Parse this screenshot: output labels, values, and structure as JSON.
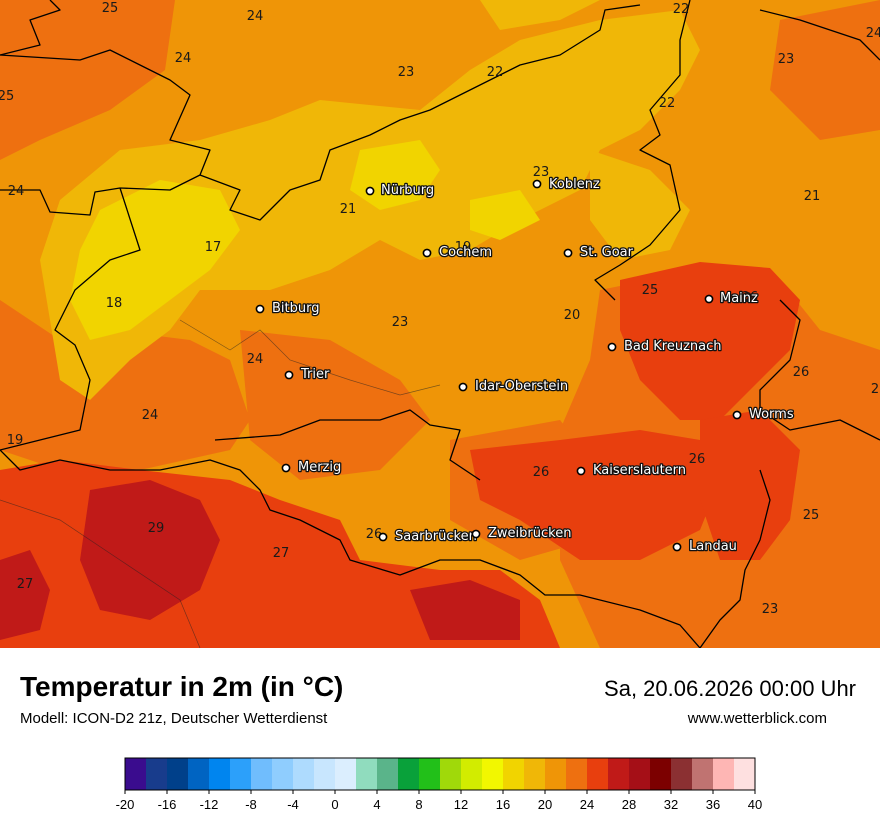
{
  "title": "Temperatur in 2m (in °C)",
  "subtitle": "Modell: ICON-D2 21z, Deutscher Wetterdienst",
  "datetime": "Sa, 20.06.2026 00:00 Uhr",
  "website": "www.wetterblick.com",
  "cities": [
    {
      "name": "Nürburg"
    },
    {
      "name": "Koblenz"
    },
    {
      "name": "Cochem"
    },
    {
      "name": "St. Goar"
    },
    {
      "name": "Bitburg"
    },
    {
      "name": "Mainz"
    },
    {
      "name": "Bad Kreuznach"
    },
    {
      "name": "Trier"
    },
    {
      "name": "Idar-Oberstein"
    },
    {
      "name": "Worms"
    },
    {
      "name": "Merzig"
    },
    {
      "name": "Kaiserslautern"
    },
    {
      "name": "Saarbrücken"
    },
    {
      "name": "Zweibrücken"
    },
    {
      "name": "Landau"
    }
  ],
  "values": [
    {
      "text": "25"
    },
    {
      "text": "24"
    },
    {
      "text": "24"
    },
    {
      "text": "23"
    },
    {
      "text": "22"
    },
    {
      "text": "22"
    },
    {
      "text": "22"
    },
    {
      "text": "23"
    },
    {
      "text": "24"
    },
    {
      "text": "25"
    },
    {
      "text": "24"
    },
    {
      "text": "23"
    },
    {
      "text": "21"
    },
    {
      "text": "21"
    },
    {
      "text": "17"
    },
    {
      "text": "19"
    },
    {
      "text": "18"
    },
    {
      "text": "23"
    },
    {
      "text": "20"
    },
    {
      "text": "25"
    },
    {
      "text": "26"
    },
    {
      "text": "24"
    },
    {
      "text": "26"
    },
    {
      "text": "24"
    },
    {
      "text": "19"
    },
    {
      "text": "26"
    },
    {
      "text": "26"
    },
    {
      "text": "29"
    },
    {
      "text": "26"
    },
    {
      "text": "27"
    },
    {
      "text": "25"
    },
    {
      "text": "27"
    },
    {
      "text": "23"
    },
    {
      "text": "2"
    },
    {
      "text": "2"
    }
  ],
  "legend": {
    "ticks": [
      "-20",
      "-16",
      "-12",
      "-8",
      "-4",
      "0",
      "4",
      "8",
      "12",
      "16",
      "20",
      "24",
      "28",
      "32",
      "36",
      "40"
    ],
    "colors": [
      "#3a0c8e",
      "#183c8c",
      "#00408a",
      "#0064c2",
      "#0085ef",
      "#2ca0fa",
      "#70bdfd",
      "#8fcdfe",
      "#aedbfe",
      "#c8e6fe",
      "#dbeefe",
      "#90dcbe",
      "#5ab48a",
      "#09a13a",
      "#22c019",
      "#a0d90a",
      "#d2ec00",
      "#f2f700",
      "#f1d400",
      "#f0b707",
      "#ef9507",
      "#ee7010",
      "#e83f0e",
      "#c01a18",
      "#a50f17",
      "#7c0000",
      "#8b3032",
      "#c07371",
      "#feb6b4",
      "#fee0e0"
    ]
  },
  "map_colors": {
    "band_17": "#f1d400",
    "band_19": "#f0b707",
    "band_21": "#ef9507",
    "band_23": "#ee7010",
    "band_25": "#e83f0e",
    "band_27": "#c01a18"
  }
}
